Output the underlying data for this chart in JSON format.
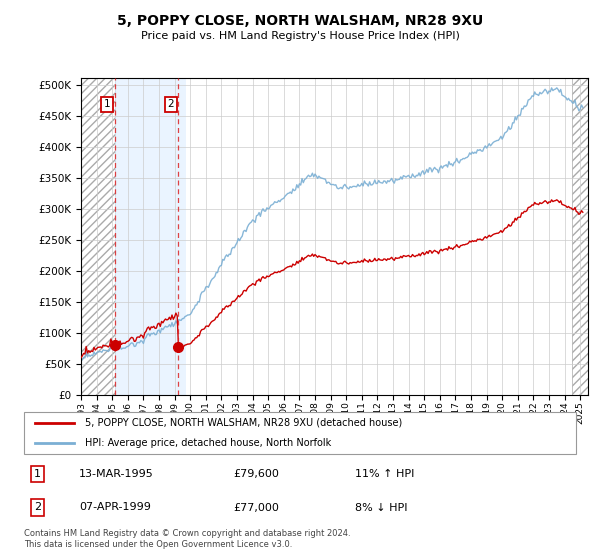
{
  "title": "5, POPPY CLOSE, NORTH WALSHAM, NR28 9XU",
  "subtitle": "Price paid vs. HM Land Registry's House Price Index (HPI)",
  "legend_line1": "5, POPPY CLOSE, NORTH WALSHAM, NR28 9XU (detached house)",
  "legend_line2": "HPI: Average price, detached house, North Norfolk",
  "transaction1_date": "13-MAR-1995",
  "transaction1_price": "£79,600",
  "transaction1_hpi": "11% ↑ HPI",
  "transaction1_year": 1995.17,
  "transaction1_value": 79600,
  "transaction2_date": "07-APR-1999",
  "transaction2_price": "£77,000",
  "transaction2_hpi": "8% ↓ HPI",
  "transaction2_year": 1999.25,
  "transaction2_value": 77000,
  "footer": "Contains HM Land Registry data © Crown copyright and database right 2024.\nThis data is licensed under the Open Government Licence v3.0.",
  "hpi_color": "#7bafd4",
  "property_color": "#cc0000",
  "hatch_region_color": "#d8d8d8",
  "blue_region_color": "#ddeeff",
  "ylim_min": 0,
  "ylim_max": 510000,
  "xmin": 1993.0,
  "xmax": 2025.5
}
